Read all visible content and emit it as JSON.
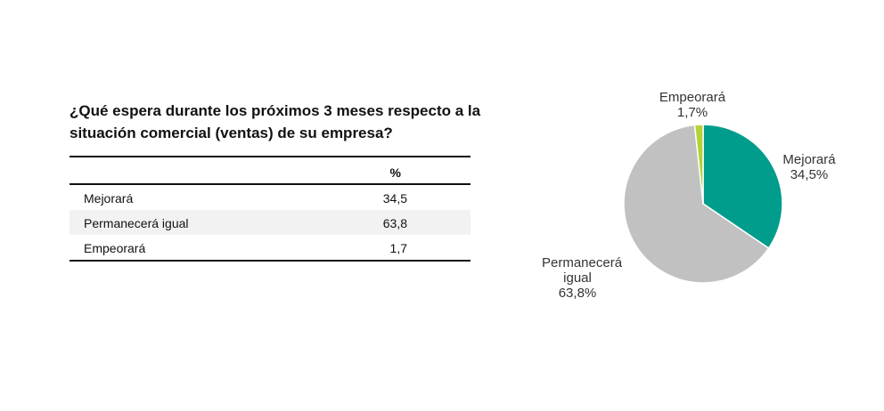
{
  "title": "¿Qué espera durante los próximos 3 meses respecto a la situación comercial (ventas) de su empresa?",
  "table": {
    "header": "%",
    "rows": [
      [
        "Mejorará",
        "34,5"
      ],
      [
        "Permanecerá igual",
        "63,8"
      ],
      [
        "Empeorará",
        "1,7"
      ]
    ]
  },
  "chart_data": {
    "type": "pie",
    "categories": [
      "Mejorará",
      "Permanecerá igual",
      "Empeorará"
    ],
    "values": [
      34.5,
      63.8,
      1.7
    ],
    "value_labels": [
      "34,5%",
      "63,8%",
      "1,7%"
    ],
    "colors": [
      "#009c8c",
      "#c1c1c1",
      "#b3d235"
    ]
  }
}
